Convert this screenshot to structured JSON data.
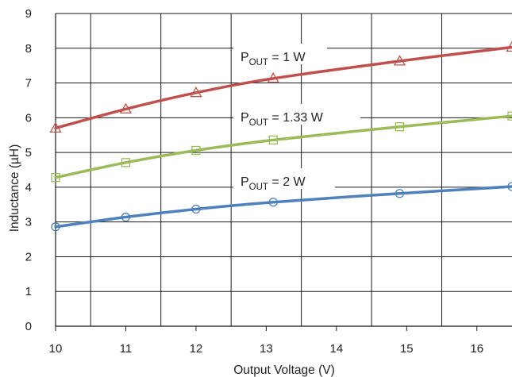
{
  "chart_data": {
    "type": "line",
    "title": "",
    "xlabel": "Output  Voltage  (V)",
    "ylabel": "Inductance  (µH)",
    "xlim": [
      10,
      16.5
    ],
    "ylim": [
      0,
      9
    ],
    "x_ticks": [
      "10",
      "11",
      "12",
      "13",
      "14",
      "15",
      "16"
    ],
    "y_ticks": [
      "0",
      "1",
      "2",
      "3",
      "4",
      "5",
      "6",
      "7",
      "8",
      "9"
    ],
    "grid": true,
    "series": [
      {
        "label_main": "P",
        "label_sub": "OUT",
        "label_rest": " = 1 W",
        "color": "#c0504d",
        "marker": "triangle",
        "x": [
          10,
          11,
          12,
          13.1,
          14.9,
          16.5
        ],
        "y": [
          5.7,
          6.25,
          6.72,
          7.13,
          7.63,
          8.03
        ]
      },
      {
        "label_main": "P",
        "label_sub": "OUT",
        "label_rest": " = 1.33 W",
        "color": "#9bbb59",
        "marker": "square",
        "x": [
          10,
          11,
          12,
          13.1,
          14.9,
          16.5
        ],
        "y": [
          4.28,
          4.71,
          5.06,
          5.36,
          5.74,
          6.05
        ]
      },
      {
        "label_main": "P",
        "label_sub": "OUT",
        "label_rest": " = 2 W",
        "color": "#4f81bd",
        "marker": "circle",
        "x": [
          10,
          11,
          12,
          13.1,
          14.9,
          16.5
        ],
        "y": [
          2.86,
          3.14,
          3.37,
          3.57,
          3.82,
          4.02
        ]
      }
    ]
  }
}
